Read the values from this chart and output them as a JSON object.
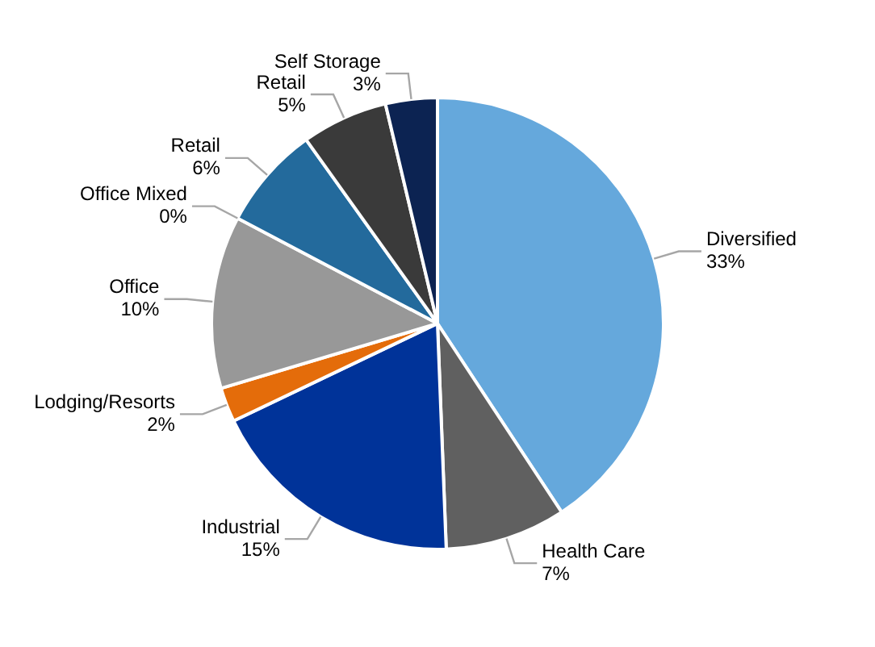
{
  "chart_data": {
    "type": "pie",
    "categories": [
      "Diversified",
      "Health Care",
      "Industrial",
      "Lodging/Resorts",
      "Office",
      "Office Mixed",
      "Retail",
      "Retail",
      "Self Storage"
    ],
    "values": [
      33,
      7,
      15,
      2,
      10,
      0,
      6,
      5,
      3
    ],
    "colors": [
      "#65a8dc",
      "#606060",
      "#003399",
      "#e46c0a",
      "#989898",
      "#d9d9d9",
      "#236a9c",
      "#3a3a3a",
      "#0c2352"
    ],
    "value_labels": [
      "33%",
      "7%",
      "15%",
      "2%",
      "10%",
      "0%",
      "6%",
      "5%",
      "3%"
    ],
    "legend": false
  }
}
